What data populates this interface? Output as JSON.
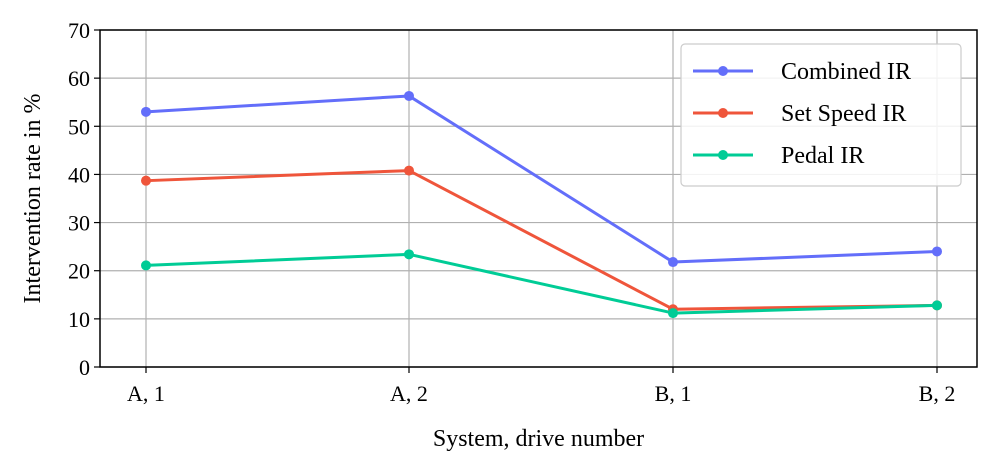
{
  "chart_data": {
    "type": "line",
    "xlabel": "System, drive number",
    "ylabel": "Intervention rate in %",
    "categories": [
      "A, 1",
      "A, 2",
      "B, 1",
      "B, 2"
    ],
    "ylim": [
      0,
      70
    ],
    "yticks": [
      0,
      10,
      20,
      30,
      40,
      50,
      60,
      70
    ],
    "grid": true,
    "legend_position": "top-right",
    "series": [
      {
        "name": "Combined IR",
        "color": "#636efa",
        "values": [
          53.0,
          56.3,
          21.8,
          24.0
        ]
      },
      {
        "name": "Set Speed IR",
        "color": "#ef553b",
        "values": [
          38.7,
          40.8,
          12.0,
          12.8
        ]
      },
      {
        "name": "Pedal IR",
        "color": "#00cc96",
        "values": [
          21.1,
          23.4,
          11.2,
          12.8
        ]
      }
    ]
  }
}
